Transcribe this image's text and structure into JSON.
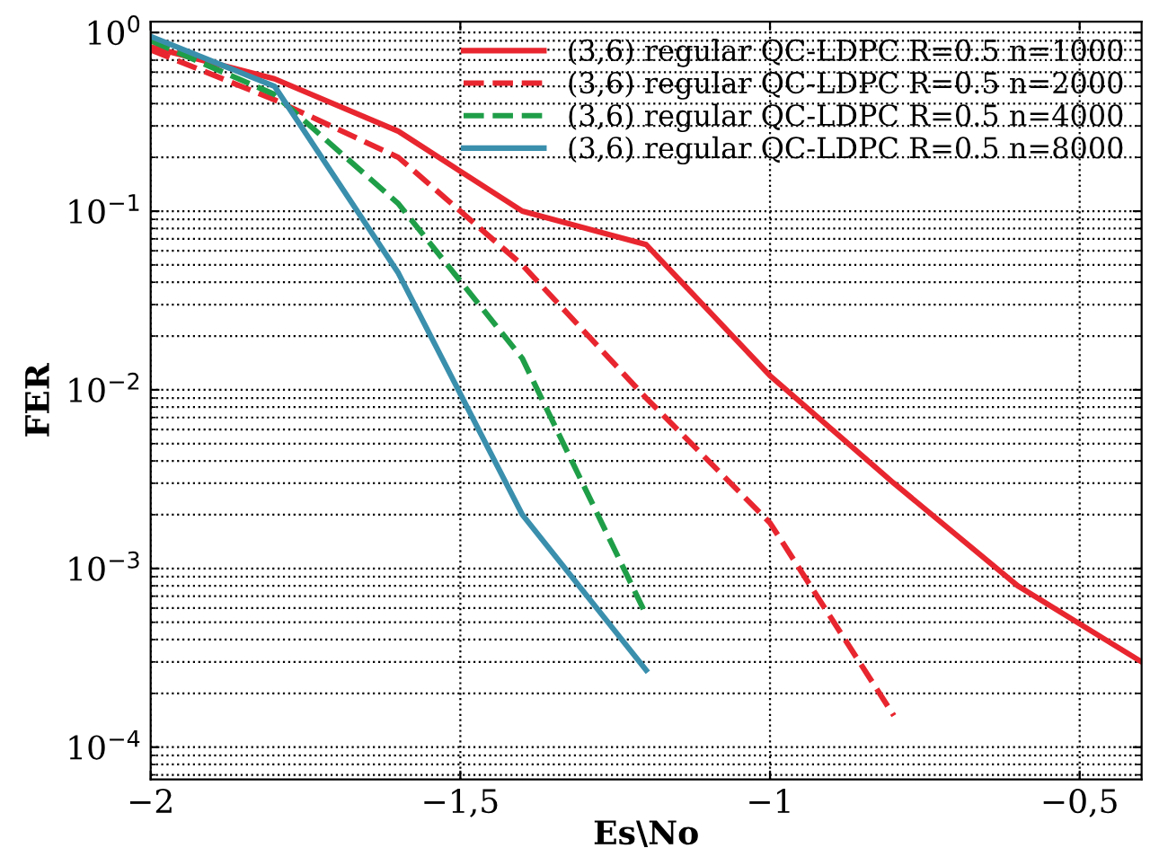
{
  "chart_data": {
    "type": "line",
    "xlabel": "Es\\No",
    "ylabel": "FER",
    "log": "y",
    "xlim": [
      -2,
      -0.4
    ],
    "ylim": [
      6.6e-05,
      1.15
    ],
    "xticks": [
      {
        "value": -2,
        "label": "−2"
      },
      {
        "value": -1.5,
        "label": "−1,5"
      },
      {
        "value": -1,
        "label": "−1"
      },
      {
        "value": -0.5,
        "label": "−0,5"
      }
    ],
    "yticks": [
      {
        "value": 0.0001,
        "label": "10$^{−4}$"
      },
      {
        "value": 0.001,
        "label": "10$^{−3}$"
      },
      {
        "value": 0.01,
        "label": "10$^{−2}$"
      },
      {
        "value": 0.1,
        "label": "10$^{−1}$"
      },
      {
        "value": 1,
        "label": "10$^{0}$"
      }
    ],
    "grid": true,
    "legend": "top right",
    "series": [
      {
        "name": "(3,6) regular QC-LDPC R=0.5 n=1000",
        "color": "#e8262f",
        "line_style": "solid",
        "x": [
          -2,
          -1.8,
          -1.6,
          -1.4,
          -1.2,
          -1,
          -0.8,
          -0.6,
          -0.4
        ],
        "values": [
          0.83,
          0.55,
          0.28,
          0.1,
          0.065,
          0.012,
          0.003,
          0.0008,
          0.0003
        ]
      },
      {
        "name": "(3,6) regular QC-LDPC R=0.5 n=2000",
        "color": "#e8262f",
        "line_style": "dashed",
        "x": [
          -2,
          -1.8,
          -1.6,
          -1.4,
          -1.2,
          -1,
          -0.8
        ],
        "values": [
          0.8,
          0.42,
          0.2,
          0.05,
          0.009,
          0.0018,
          0.00015
        ]
      },
      {
        "name": "(3,6) regular QC-LDPC R=0.5 n=4000",
        "color": "#1f9e48",
        "line_style": "dashed",
        "x": [
          -2,
          -1.8,
          -1.6,
          -1.4,
          -1.2
        ],
        "values": [
          0.9,
          0.45,
          0.11,
          0.015,
          0.00055
        ]
      },
      {
        "name": "(3,6) regular QC-LDPC R=0.5 n=8000",
        "color": "#3a8fad",
        "line_style": "solid",
        "x": [
          -2,
          -1.8,
          -1.6,
          -1.4,
          -1.2
        ],
        "values": [
          0.95,
          0.5,
          0.045,
          0.002,
          0.00027
        ]
      }
    ]
  }
}
